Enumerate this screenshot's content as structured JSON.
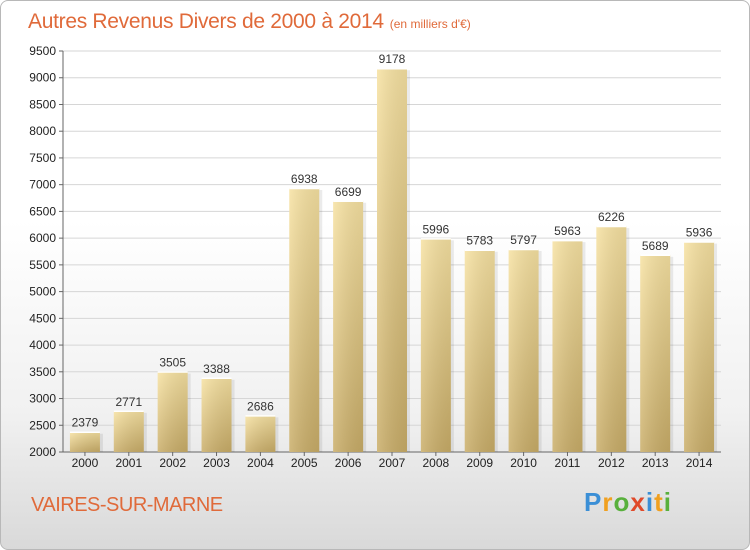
{
  "chart_data": {
    "type": "bar",
    "title": "Autres Revenus Divers de 2000 à 2014",
    "subtitle": "(en milliers d'€)",
    "categories": [
      "2000",
      "2001",
      "2002",
      "2003",
      "2004",
      "2005",
      "2006",
      "2007",
      "2008",
      "2009",
      "2010",
      "2011",
      "2012",
      "2013",
      "2014"
    ],
    "values": [
      2379,
      2771,
      3505,
      3388,
      2686,
      6938,
      6699,
      9178,
      5996,
      5783,
      5797,
      5963,
      6226,
      5689,
      5936
    ],
    "ylim": [
      2000,
      9500
    ],
    "yticks": [
      2000,
      2500,
      3000,
      3500,
      4000,
      4500,
      5000,
      5500,
      6000,
      6500,
      7000,
      7500,
      8000,
      8500,
      9000,
      9500
    ],
    "grid": true,
    "bar_color": "#e8c97a"
  },
  "location": "VAIRES-SUR-MARNE",
  "brand": {
    "letters": [
      "P",
      "r",
      "o",
      "x",
      "i",
      "t",
      "i"
    ],
    "colors": [
      "#3b8fd6",
      "#f0a020",
      "#58b03c",
      "#e04a2a",
      "#3b8fd6",
      "#f0a020",
      "#58b03c"
    ]
  }
}
